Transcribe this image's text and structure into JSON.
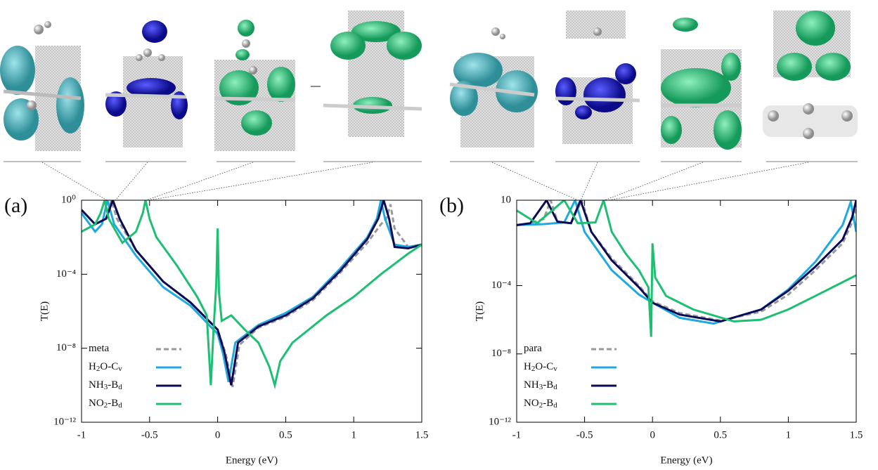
{
  "chart_data": [
    {
      "type": "line",
      "panel_label": "(a)",
      "xlabel": "Energy (eV)",
      "ylabel": "T(E)",
      "xlim": [
        -1,
        1.5
      ],
      "xticks": [
        -1,
        -0.5,
        0,
        0.5,
        1,
        1.5
      ],
      "ylim": [
        1e-12,
        1
      ],
      "log_y": true,
      "yticks": [
        {
          "value": 1e-12,
          "label": "10⁻¹²"
        },
        {
          "value": 1e-08,
          "label": "10⁻⁸"
        },
        {
          "value": 0.0001,
          "label": "10⁻⁴"
        },
        {
          "value": 1,
          "label": "10⁰"
        }
      ],
      "legend": "bottom-left",
      "series": [
        {
          "name": "meta",
          "color": "#999999",
          "dashed": true,
          "x": [
            -1,
            -0.9,
            -0.82,
            -0.78,
            -0.74,
            -0.6,
            -0.4,
            -0.2,
            0,
            0.06,
            0.11,
            0.16,
            0.3,
            0.5,
            0.7,
            0.9,
            1.1,
            1.2,
            1.24,
            1.27,
            1.3,
            1.4,
            1.5
          ],
          "values": [
            0.3,
            0.05,
            0.1,
            1,
            0.1,
            0.002,
            4e-05,
            3e-06,
            1e-07,
            5e-09,
            8e-11,
            1.5e-08,
            1.3e-07,
            5e-07,
            4e-06,
            0.00012,
            0.005,
            0.05,
            0.1,
            0.6,
            0.03,
            0.003,
            0.004
          ]
        },
        {
          "name": "H2O-Cv",
          "color": "#1fa9e1",
          "x": [
            -1,
            -0.9,
            -0.85,
            -0.81,
            -0.76,
            -0.6,
            -0.4,
            -0.2,
            0,
            0.04,
            0.08,
            0.13,
            0.3,
            0.5,
            0.7,
            0.9,
            1.1,
            1.17,
            1.2,
            1.23,
            1.3,
            1.4,
            1.5
          ],
          "values": [
            0.2,
            0.02,
            0.05,
            1,
            0.05,
            0.001,
            2e-05,
            2e-06,
            6e-08,
            5e-09,
            1.5e-10,
            2e-08,
            1.8e-07,
            8e-07,
            6e-06,
            0.0002,
            0.01,
            0.1,
            1,
            0.1,
            0.004,
            0.003,
            0.004
          ]
        },
        {
          "name": "NH3-Bd",
          "color": "#0b0b55",
          "x": [
            -1,
            -0.9,
            -0.82,
            -0.77,
            -0.72,
            -0.6,
            -0.4,
            -0.2,
            0,
            0.05,
            0.1,
            0.15,
            0.3,
            0.5,
            0.7,
            0.9,
            1.1,
            1.18,
            1.22,
            1.26,
            1.3,
            1.4,
            1.5
          ],
          "values": [
            0.3,
            0.05,
            0.1,
            1,
            0.1,
            0.002,
            4e-05,
            3e-06,
            1e-07,
            6e-09,
            1e-10,
            2e-08,
            1.5e-07,
            6e-07,
            5e-06,
            0.00015,
            0.008,
            0.1,
            1,
            0.1,
            0.003,
            0.0025,
            0.004
          ]
        },
        {
          "name": "NO2-Bd",
          "color": "#1dbf73",
          "x": [
            -1,
            -0.9,
            -0.86,
            -0.83,
            -0.8,
            -0.7,
            -0.6,
            -0.55,
            -0.53,
            -0.5,
            -0.45,
            -0.3,
            -0.15,
            -0.08,
            -0.05,
            -0.03,
            -0.01,
            0,
            0.01,
            0.03,
            0.1,
            0.2,
            0.3,
            0.38,
            0.42,
            0.46,
            0.55,
            0.8,
            1,
            1.2,
            1.4,
            1.5
          ],
          "values": [
            0.02,
            0.05,
            0.2,
            1,
            0.1,
            0.005,
            0.02,
            0.2,
            1,
            0.1,
            0.01,
            0.0003,
            6e-06,
            6e-07,
            1e-10,
            1e-07,
            3e-05,
            0.03,
            1e-05,
            3e-07,
            6e-07,
            1e-07,
            2e-08,
            1e-09,
            1e-10,
            2e-09,
            2e-08,
            6e-07,
            6e-06,
            0.0001,
            0.0013,
            0.004
          ]
        }
      ]
    },
    {
      "type": "line",
      "panel_label": "(b)",
      "xlabel": "Energy (eV)",
      "ylabel": "T(E)",
      "xlim": [
        -1,
        1.5
      ],
      "xticks": [
        -1,
        -0.5,
        0,
        0.5,
        1,
        1.5
      ],
      "ylim": [
        1e-12,
        10
      ],
      "log_y": true,
      "yticks": [
        {
          "value": 1e-12,
          "label": "10⁻¹²"
        },
        {
          "value": 1e-08,
          "label": "10⁻⁸"
        },
        {
          "value": 0.0001,
          "label": "10⁻⁴"
        },
        10
      ],
      "legend": "bottom-left",
      "series": [
        {
          "name": "para",
          "color": "#999999",
          "dashed": true,
          "x": [
            -1,
            -0.9,
            -0.8,
            -0.75,
            -0.7,
            -0.6,
            -0.52,
            -0.45,
            -0.3,
            -0.1,
            0,
            0.2,
            0.5,
            0.8,
            1,
            1.2,
            1.4,
            1.47,
            1.5
          ],
          "values": [
            0.35,
            0.45,
            0.8,
            10,
            0.56,
            0.45,
            10,
            0.14,
            0.004,
            0.0001,
            1.2e-05,
            2.5e-06,
            9e-07,
            3e-06,
            3e-05,
            0.0008,
            0.03,
            0.5,
            3
          ]
        },
        {
          "name": "H2O-Cv",
          "color": "#1fa9e1",
          "x": [
            -1,
            -0.8,
            -0.65,
            -0.57,
            -0.5,
            -0.3,
            -0.1,
            0,
            0.2,
            0.45,
            0.8,
            1,
            1.2,
            1.4,
            1.46,
            1.5
          ],
          "values": [
            0.35,
            0.4,
            0.5,
            10,
            0.14,
            0.0008,
            3e-05,
            1e-05,
            1.3e-06,
            6e-07,
            4e-06,
            6e-05,
            0.0025,
            0.35,
            8,
            0.14
          ]
        },
        {
          "name": "NH3-Bd",
          "color": "#0b0b55",
          "x": [
            -1,
            -0.9,
            -0.78,
            -0.7,
            -0.6,
            -0.53,
            -0.45,
            -0.3,
            -0.1,
            0,
            0.2,
            0.5,
            0.8,
            1,
            1.2,
            1.4,
            1.47,
            1.5
          ],
          "values": [
            0.35,
            0.45,
            10,
            0.56,
            0.45,
            10,
            0.14,
            0.003,
            8e-05,
            1e-05,
            2e-06,
            8e-07,
            4e-06,
            5e-05,
            0.0013,
            0.05,
            1,
            10
          ]
        },
        {
          "name": "NO2-Bd",
          "color": "#1dbf73",
          "x": [
            -1,
            -0.85,
            -0.65,
            -0.55,
            -0.42,
            -0.36,
            -0.3,
            -0.2,
            -0.1,
            -0.03,
            -0.01,
            0,
            0.02,
            0.1,
            0.3,
            0.6,
            0.8,
            1,
            1.2,
            1.5
          ],
          "values": [
            2.5,
            0.45,
            10,
            0.45,
            0.5,
            10,
            0.14,
            0.008,
            0.0008,
            8e-05,
            1e-07,
            0.03,
            0.0003,
            2.5e-05,
            4e-06,
            8e-07,
            1e-06,
            4e-06,
            2.5e-05,
            0.0004
          ]
        }
      ]
    }
  ]
}
